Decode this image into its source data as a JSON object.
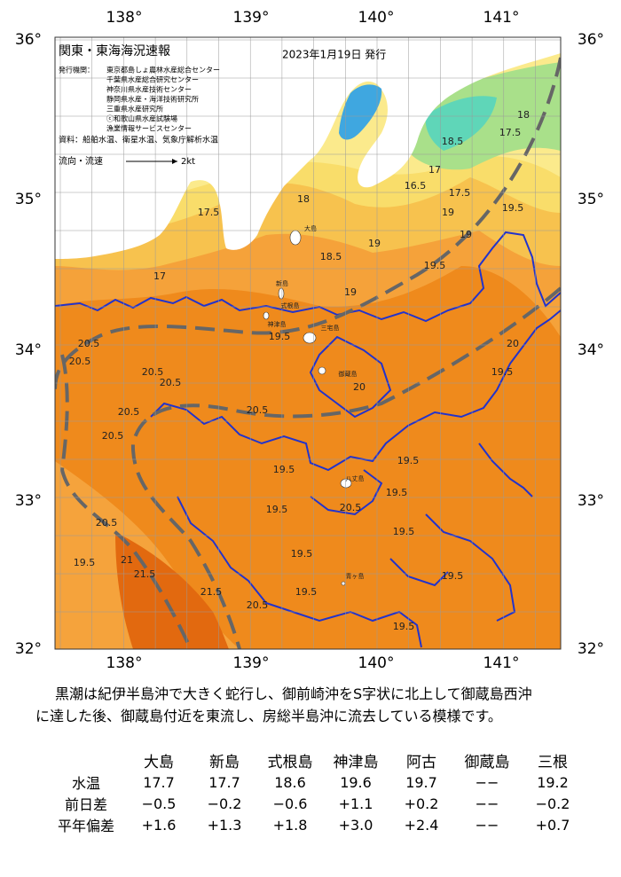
{
  "map": {
    "title": "関東・東海海況速報",
    "issued": "2023年1月19日 発行",
    "institutions_label": "発行機関：",
    "institutions": [
      "東京都島しょ農林水産総合センター",
      "千葉県水産総合研究センター",
      "神奈川県水産技術センター",
      "静岡県水産・海洋技術研究所",
      "三重県水産研究所",
      "ⓒ和歌山県水産試験場",
      "漁業情報サービスセンター"
    ],
    "source": "資料：船舶水温、衛星水温、気象庁解析水温",
    "current_label": "流向・流速",
    "current_scale": "2kt",
    "lon_labels": [
      "138°",
      "139°",
      "140°",
      "141°"
    ],
    "lat_labels": [
      "36°",
      "35°",
      "34°",
      "33°",
      "32°"
    ],
    "place_labels": [
      "大島",
      "新島",
      "式根島",
      "神津島",
      "三宅島",
      "御蔵島",
      "八丈島",
      "青ヶ島"
    ],
    "contour_labels": [
      "18",
      "17.5",
      "18.5",
      "17",
      "16.5",
      "17.5",
      "19",
      "19.5",
      "19",
      "19.5",
      "19",
      "18",
      "18.5",
      "19",
      "19.5",
      "20.5",
      "20.5",
      "20.5",
      "20.5",
      "20.5",
      "20.5",
      "20.5",
      "20",
      "19.5",
      "20",
      "19.5",
      "19.5",
      "19.5",
      "20.5",
      "19.5",
      "19.5",
      "19.5",
      "19.5",
      "19.5",
      "19.5",
      "21",
      "21.5",
      "21.5",
      "20.5",
      "19.5",
      "20.5",
      "17.5",
      "17"
    ]
  },
  "summary": [
    "黒潮は紀伊半島沖で大きく蛇行し、御前崎沖をS字状に北上して御蔵島西沖",
    "に達した後、御蔵島付近を東流し、房総半島沖に流去している模様です。"
  ],
  "table": {
    "header": [
      "大島",
      "新島",
      "式根島",
      "神津島",
      "阿古",
      "御蔵島",
      "三根"
    ],
    "rows": [
      {
        "label": "水温",
        "values": [
          "17.7",
          "17.7",
          "18.6",
          "19.6",
          "19.7",
          "−−",
          "19.2"
        ]
      },
      {
        "label": "前日差",
        "values": [
          "−0.5",
          "−0.2",
          "−0.6",
          "+1.1",
          "+0.2",
          "−−",
          "−0.2"
        ]
      },
      {
        "label": "平年偏差",
        "values": [
          "+1.6",
          "+1.3",
          "+1.8",
          "+3.0",
          "+2.4",
          "−−",
          "+0.7"
        ]
      }
    ]
  }
}
